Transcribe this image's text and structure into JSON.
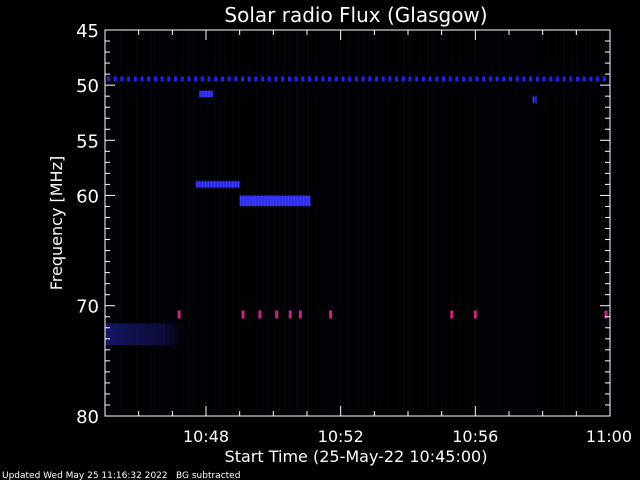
{
  "chart_data": {
    "type": "heatmap",
    "title": "Solar radio Flux (Glasgow)",
    "xlabel": "Start Time (25-May-22 10:45:00)",
    "ylabel": "Frequency [MHz]",
    "x_range_minutes_after_start": [
      0,
      15
    ],
    "y_range_mhz": [
      45,
      80
    ],
    "x_ticks": [
      {
        "minutes": 3,
        "label": "10:48"
      },
      {
        "minutes": 7,
        "label": "10:52"
      },
      {
        "minutes": 11,
        "label": "10:56"
      },
      {
        "minutes": 15,
        "label": "11:00"
      }
    ],
    "y_ticks": [
      {
        "mhz": 45,
        "label": "45"
      },
      {
        "mhz": 50,
        "label": "50"
      },
      {
        "mhz": 55,
        "label": "55"
      },
      {
        "mhz": 60,
        "label": "60"
      },
      {
        "mhz": 70,
        "label": "70"
      },
      {
        "mhz": 80,
        "label": "80"
      }
    ],
    "background_color": "#000000",
    "features": [
      {
        "name": "persistent emission line",
        "freq_mhz": 49.4,
        "t_start": 0,
        "t_end": 15,
        "color": "#2222ee",
        "dotted": true
      },
      {
        "name": "blob near 51 MHz",
        "freq_mhz": 50.8,
        "t_start": 2.8,
        "t_end": 3.2,
        "color": "#2a2aff"
      },
      {
        "name": "small blob near 51 MHz",
        "freq_mhz": 51.3,
        "t_start": 12.7,
        "t_end": 12.8,
        "color": "#1f1fdd"
      },
      {
        "name": "burst near 59 MHz",
        "freq_mhz": 59.0,
        "t_start": 2.7,
        "t_end": 4.0,
        "color": "#2a2aff"
      },
      {
        "name": "burst near 60.5 MHz",
        "freq_mhz": 60.5,
        "t_start": 4.0,
        "t_end": 6.1,
        "color": "#3030ff"
      },
      {
        "name": "faint band near 73 MHz",
        "freq_mhz": 72.5,
        "t_start": 0,
        "t_end": 2.2,
        "color": "#101060"
      }
    ],
    "spikes_mhz": 70.8,
    "spike_times_minutes": [
      2.2,
      4.1,
      4.6,
      5.1,
      5.5,
      5.8,
      6.7,
      10.3,
      11.0,
      15.0
    ],
    "spike_color": "#cc2288"
  },
  "footer": {
    "updated": "Updated Wed May 25 11:16:32 2022",
    "note": "BG subtracted"
  }
}
